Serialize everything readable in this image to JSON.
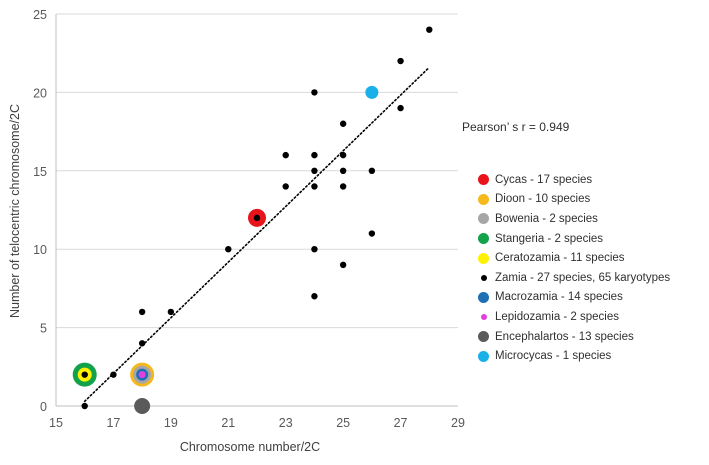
{
  "chart_data": {
    "type": "scatter",
    "title": "",
    "xlabel": "Chromosome number/2C",
    "ylabel": "Number of telocentric chromosome/2C",
    "xlim": [
      15,
      29
    ],
    "ylim": [
      0,
      25
    ],
    "x_ticks": [
      "15",
      "17",
      "19",
      "21",
      "23",
      "25",
      "27",
      "29"
    ],
    "y_ticks": [
      "0",
      "5",
      "10",
      "15",
      "20",
      "25"
    ],
    "grid": "horizontal",
    "trendline": {
      "style": "dotted",
      "from": [
        16,
        0.3
      ],
      "to": [
        28,
        21.6
      ]
    },
    "annotation": "Pearson’ s r = 0.949",
    "series": [
      {
        "name": "Cycas - 17 species",
        "color": "#e8141b",
        "points": [
          [
            22,
            12
          ]
        ]
      },
      {
        "name": "Dioon - 10 species",
        "color": "#f5b91e",
        "points": [
          [
            18,
            2
          ]
        ]
      },
      {
        "name": "Bowenia - 2 species",
        "color": "#a6a6a6",
        "points": [
          [
            18,
            2
          ]
        ]
      },
      {
        "name": "Stangeria - 2 species",
        "color": "#12a34a",
        "points": [
          [
            16,
            2
          ]
        ]
      },
      {
        "name": "Ceratozamia - 11 species",
        "color": "#fff200",
        "points": [
          [
            16,
            2
          ]
        ]
      },
      {
        "name": "Zamia - 27 species, 65 karyotypes",
        "color": "#000000",
        "points": [
          [
            16,
            0
          ],
          [
            16,
            2
          ],
          [
            17,
            2
          ],
          [
            18,
            4
          ],
          [
            18,
            6
          ],
          [
            19,
            6
          ],
          [
            21,
            10
          ],
          [
            22,
            12
          ],
          [
            23,
            14
          ],
          [
            23,
            16
          ],
          [
            24,
            7
          ],
          [
            24,
            10
          ],
          [
            24,
            14
          ],
          [
            24,
            15
          ],
          [
            24,
            16
          ],
          [
            24,
            20
          ],
          [
            25,
            9
          ],
          [
            25,
            14
          ],
          [
            25,
            15
          ],
          [
            25,
            16
          ],
          [
            25,
            18
          ],
          [
            26,
            11
          ],
          [
            26,
            15
          ],
          [
            27,
            19
          ],
          [
            27,
            22
          ],
          [
            28,
            24
          ]
        ]
      },
      {
        "name": "Macrozamia - 14 species",
        "color": "#1f6fb5",
        "points": [
          [
            18,
            2
          ]
        ]
      },
      {
        "name": "Lepidozamia - 2 species",
        "color": "#e040e0",
        "points": [
          [
            18,
            2
          ]
        ]
      },
      {
        "name": "Encephalartos - 13 species",
        "color": "#5a5a5a",
        "points": [
          [
            18,
            0
          ]
        ]
      },
      {
        "name": "Microcycas - 1 species",
        "color": "#1ab0e8",
        "points": [
          [
            26,
            20
          ]
        ]
      }
    ]
  }
}
